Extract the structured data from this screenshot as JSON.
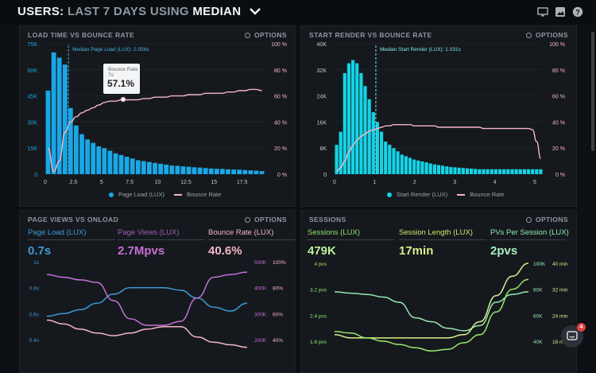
{
  "header": {
    "title_prefix": "USERS:",
    "title_period": "LAST 7 DAYS",
    "title_using": "USING",
    "title_mode": "MEDIAN",
    "icons": [
      "monitor-icon",
      "image-icon",
      "help-icon"
    ]
  },
  "colors": {
    "blue": "#1aa7e6",
    "cyan": "#14d3e6",
    "pink": "#f6b5c7",
    "purple": "#c46fd6",
    "green": "#99e86b",
    "bg": "#15191d"
  },
  "panel_load": {
    "title": "LOAD TIME VS BOUNCE RATE",
    "options": "OPTIONS",
    "median_label": "Median Page Load (LUX): 2.056s",
    "tooltip_line1": "Bounce Rate",
    "tooltip_line2": "7s",
    "tooltip_value": "57.1%",
    "legend_bar": "Page Load (LUX)",
    "legend_line": "Bounce Rate"
  },
  "panel_render": {
    "title": "START RENDER VS BOUNCE RATE",
    "options": "OPTIONS",
    "median_label": "Median Start Render (LUX): 1.031s",
    "legend_bar": "Start Render (LUX)",
    "legend_line": "Bounce Rate"
  },
  "panel_views": {
    "title": "PAGE VIEWS VS ONLOAD",
    "options": "OPTIONS",
    "metrics": [
      {
        "label": "Page Load (LUX)",
        "value": "0.7s"
      },
      {
        "label": "Page Views (LUX)",
        "value": "2.7Mpvs"
      },
      {
        "label": "Bounce Rate (LUX)",
        "value": "40.6%"
      }
    ]
  },
  "panel_sessions": {
    "title": "SESSIONS",
    "options": "OPTIONS",
    "metrics": [
      {
        "label": "Sessions (LUX)",
        "value": "479K"
      },
      {
        "label": "Session Length (LUX)",
        "value": "17min"
      },
      {
        "label": "PVs Per Session (LUX)",
        "value": "2pvs"
      }
    ]
  },
  "chat": {
    "badge": "4"
  },
  "chart_data": [
    {
      "type": "bar",
      "title": "LOAD TIME VS BOUNCE RATE",
      "x": [
        0,
        0.5,
        1,
        1.5,
        2,
        2.5,
        3,
        3.5,
        4,
        4.5,
        5,
        5.5,
        6,
        6.5,
        7,
        7.5,
        8,
        8.5,
        9,
        9.5,
        10,
        10.5,
        11,
        11.5,
        12,
        12.5,
        13,
        13.5,
        14,
        14.5,
        15,
        15.5,
        16,
        16.5,
        17,
        17.5,
        18,
        18.5,
        19
      ],
      "x_ticks": [
        "0",
        "2.5",
        "5",
        "7.5",
        "10",
        "12.5",
        "15",
        "17.5"
      ],
      "y_left_ticks": [
        "0",
        "15K",
        "30K",
        "45K",
        "60K",
        "75K"
      ],
      "y_right_ticks": [
        "0 %",
        "20 %",
        "40 %",
        "60 %",
        "80 %",
        "100 %"
      ],
      "ylim_left": [
        0,
        75000
      ],
      "ylim_right": [
        0,
        100
      ],
      "series": [
        {
          "name": "Page Load (LUX)",
          "kind": "bar",
          "values": [
            48000,
            70000,
            67000,
            63000,
            38000,
            28000,
            23000,
            20000,
            18000,
            16000,
            15000,
            13500,
            12000,
            11000,
            10000,
            9000,
            8000,
            7500,
            7000,
            6500,
            6000,
            5500,
            5000,
            4800,
            4500,
            4300,
            4000,
            3800,
            3500,
            3300,
            3100,
            3000,
            2800,
            2700,
            2600,
            2400,
            2200,
            2000,
            1800
          ]
        },
        {
          "name": "Bounce Rate",
          "kind": "line",
          "values": [
            20,
            2,
            10,
            32,
            40,
            44,
            47,
            49,
            51,
            53,
            55,
            56,
            56,
            57,
            57,
            57,
            57.1,
            58,
            58,
            59,
            59,
            59,
            60,
            60,
            60,
            61,
            61,
            61,
            62,
            62,
            62,
            62,
            63,
            63,
            64,
            64,
            65,
            65,
            64
          ]
        }
      ]
    },
    {
      "type": "bar",
      "title": "START RENDER VS BOUNCE RATE",
      "x": [
        0.1,
        0.2,
        0.3,
        0.4,
        0.5,
        0.6,
        0.7,
        0.8,
        0.9,
        1.0,
        1.1,
        1.2,
        1.3,
        1.4,
        1.5,
        1.6,
        1.7,
        1.8,
        1.9,
        2.0,
        2.1,
        2.2,
        2.3,
        2.4,
        2.5,
        2.6,
        2.7,
        2.8,
        2.9,
        3.0,
        3.1,
        3.2,
        3.3,
        3.4,
        3.5,
        3.6,
        3.7,
        3.8,
        3.9,
        4.0,
        4.1,
        4.2,
        4.3,
        4.4,
        4.5,
        4.6,
        4.7,
        4.8,
        4.9,
        5.0,
        5.1
      ],
      "x_ticks": [
        "0",
        "1",
        "2",
        "3",
        "4",
        "5"
      ],
      "y_left_ticks": [
        "0",
        "8K",
        "16K",
        "24K",
        "32K",
        "40K"
      ],
      "y_right_ticks": [
        "0 %",
        "20 %",
        "40 %",
        "60 %",
        "80 %",
        "100 %"
      ],
      "ylim_left": [
        0,
        40000
      ],
      "ylim_right": [
        0,
        100
      ],
      "series": [
        {
          "name": "Start Render (LUX)",
          "kind": "bar",
          "values": [
            9000,
            13000,
            31000,
            34000,
            35000,
            34000,
            31000,
            27000,
            23000,
            19000,
            16000,
            13000,
            10000,
            9000,
            8000,
            7000,
            6000,
            5500,
            5000,
            4500,
            4200,
            3900,
            3600,
            3300,
            3000,
            2800,
            2600,
            2400,
            2200,
            2100,
            2000,
            1900,
            1800,
            1700,
            1600,
            1500,
            1500,
            1500,
            1500,
            1500,
            1500,
            1500,
            1500,
            1500,
            1500,
            1500,
            1500,
            1500,
            1500,
            1500,
            1500
          ]
        },
        {
          "name": "Bounce Rate",
          "kind": "line",
          "values": [
            2,
            5,
            10,
            17,
            22,
            26,
            29,
            31,
            33,
            34,
            35,
            36,
            37,
            37,
            38,
            38,
            38,
            38,
            38,
            37,
            37,
            37,
            37,
            37,
            37,
            36,
            36,
            36,
            36,
            36,
            36,
            36,
            36,
            36,
            36,
            36,
            35,
            35,
            35,
            35,
            35,
            35,
            35,
            35,
            35,
            35,
            35,
            35,
            34,
            25,
            12
          ]
        }
      ]
    },
    {
      "type": "line",
      "title": "PAGE VIEWS VS ONLOAD",
      "x": [
        0,
        1,
        2,
        3,
        4,
        5,
        6,
        7,
        8,
        9,
        10,
        11,
        12
      ],
      "y_left_ticks": [
        "1s",
        "0.8s",
        "0.6s",
        "0.4s"
      ],
      "y_right_views_ticks": [
        "500K",
        "400K",
        "300K",
        "200K"
      ],
      "y_right_bounce_ticks": [
        "100%",
        "80%",
        "60%",
        "40%"
      ],
      "series": [
        {
          "name": "Page Load (LUX)",
          "axis": "left",
          "values": [
            0.58,
            0.6,
            0.63,
            0.68,
            0.75,
            0.8,
            0.8,
            0.8,
            0.78,
            0.72,
            0.65,
            0.62,
            0.68
          ]
        },
        {
          "name": "Page Views (LUX)",
          "axis": "views",
          "values": [
            450000,
            440000,
            430000,
            420000,
            350000,
            280000,
            255000,
            255000,
            270000,
            360000,
            440000,
            450000,
            460000
          ]
        },
        {
          "name": "Bounce Rate (LUX)",
          "axis": "bounce",
          "values": [
            55,
            52,
            48,
            45,
            43,
            45,
            48,
            50,
            50,
            42,
            38,
            36,
            34
          ]
        }
      ]
    },
    {
      "type": "line",
      "title": "SESSIONS",
      "x": [
        0,
        1,
        2,
        3,
        4,
        5,
        6,
        7,
        8,
        9,
        10,
        11,
        12
      ],
      "y_left_ticks": [
        "4 pvs",
        "3.2 pvs",
        "2.4 pvs",
        "1.6 pvs"
      ],
      "y_right_sessions_ticks": [
        "100K",
        "80K",
        "60K",
        "40K"
      ],
      "y_right_length_ticks": [
        "40 min",
        "32 min",
        "24 min",
        "16 min"
      ],
      "series": [
        {
          "name": "Sessions (LUX)",
          "axis": "sessions",
          "values": [
            78000,
            77000,
            76000,
            74000,
            70000,
            58000,
            55000,
            50000,
            48000,
            52000,
            70000,
            76000,
            78000
          ]
        },
        {
          "name": "Session Length (LUX)",
          "axis": "length",
          "values": [
            18,
            17,
            17,
            17,
            17,
            17,
            17,
            17,
            18,
            22,
            30,
            36,
            40
          ]
        },
        {
          "name": "PVs Per Session (LUX)",
          "axis": "left",
          "values": [
            1.9,
            1.85,
            1.7,
            1.6,
            1.5,
            1.4,
            1.3,
            1.35,
            1.55,
            1.8,
            2.5,
            3.2,
            3.5
          ]
        }
      ]
    }
  ]
}
